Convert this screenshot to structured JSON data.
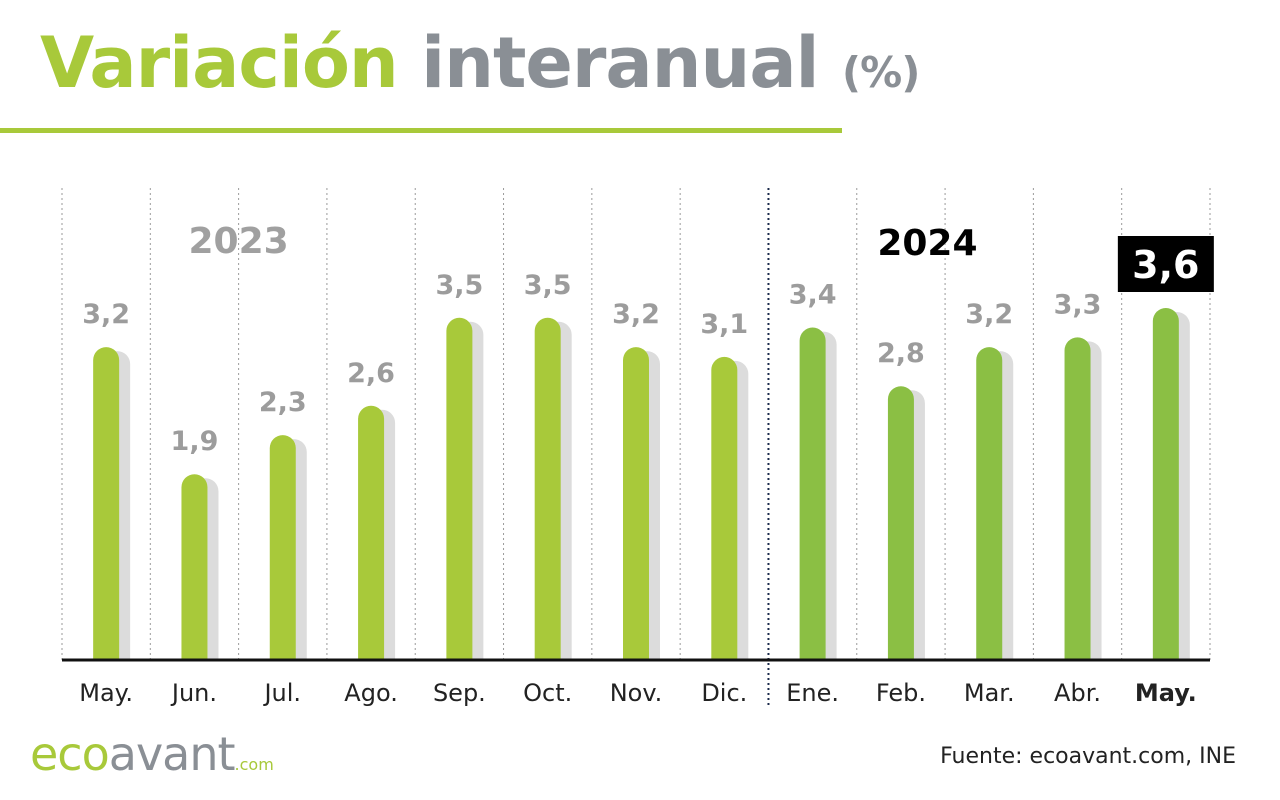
{
  "title": {
    "part1": "Variación",
    "part2": "interanual",
    "part3": "(%)"
  },
  "colors": {
    "bar_2023": "#a8c93a",
    "bar_2024": "#8bbf44",
    "shadow": "#dcdcdc",
    "label_gray": "#9c9c9c",
    "gray": "#8a8f95",
    "highlight_bg": "#000000",
    "highlight_text": "#ffffff"
  },
  "chart_data": {
    "type": "bar",
    "categories": [
      "May.",
      "Jun.",
      "Jul.",
      "Ago.",
      "Sep.",
      "Oct.",
      "Nov.",
      "Dic.",
      "Ene.",
      "Feb.",
      "Mar.",
      "Abr.",
      "May."
    ],
    "values": [
      3.2,
      1.9,
      2.3,
      2.6,
      3.5,
      3.5,
      3.2,
      3.1,
      3.4,
      2.8,
      3.2,
      3.3,
      3.6
    ],
    "value_labels": [
      "3,2",
      "1,9",
      "2,3",
      "2,6",
      "3,5",
      "3,5",
      "3,2",
      "3,1",
      "3,4",
      "2,8",
      "3,2",
      "3,3",
      "3,6"
    ],
    "year_groups": [
      {
        "label": "2023",
        "start_index": 0,
        "end_index": 7
      },
      {
        "label": "2024",
        "start_index": 8,
        "end_index": 12
      }
    ],
    "highlight_index": 12,
    "ylim": [
      0,
      3.6
    ],
    "grid": "vertical dotted separators",
    "xlabel": "",
    "ylabel": ""
  },
  "logo": {
    "part1": "eco",
    "part2": "avant",
    "part3": ".com"
  },
  "source": "Fuente: ecoavant.com, INE"
}
